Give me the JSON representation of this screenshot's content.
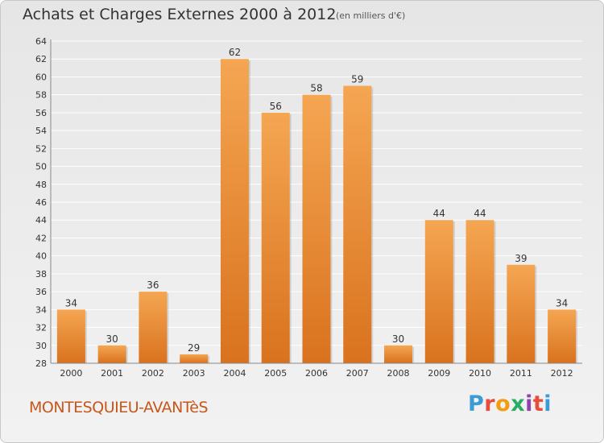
{
  "header": {
    "title": "Achats et Charges Externes 2000 à 2012",
    "unit": "(en milliers d'€)"
  },
  "footer": {
    "commune": "MONTESQUIEU-AVANTèS",
    "brand": {
      "letters": [
        "P",
        "r",
        "o",
        "x",
        "i",
        "t",
        "i"
      ],
      "colors": [
        "#3a9bd5",
        "#e74c3c",
        "#f39c12",
        "#27ae60",
        "#8e44ad",
        "#e74c3c",
        "#3a9bd5"
      ]
    }
  },
  "colors": {
    "bar_top": "#f5a652",
    "bar_bottom": "#d9721e",
    "grid": "#ffffff",
    "axis": "#888888"
  },
  "chart_data": {
    "type": "bar",
    "title": "Achats et Charges Externes 2000 à 2012",
    "subtitle": "(en milliers d'€)",
    "categories": [
      "2000",
      "2001",
      "2002",
      "2003",
      "2004",
      "2005",
      "2006",
      "2007",
      "2008",
      "2009",
      "2010",
      "2011",
      "2012"
    ],
    "values": [
      34,
      30,
      36,
      29,
      62,
      56,
      58,
      59,
      30,
      44,
      44,
      39,
      34
    ],
    "ylim": [
      28,
      64
    ],
    "yticks": [
      28,
      30,
      32,
      34,
      36,
      38,
      40,
      42,
      44,
      46,
      48,
      50,
      52,
      54,
      56,
      58,
      60,
      62,
      64
    ],
    "grid": true,
    "xlabel": "",
    "ylabel": ""
  }
}
